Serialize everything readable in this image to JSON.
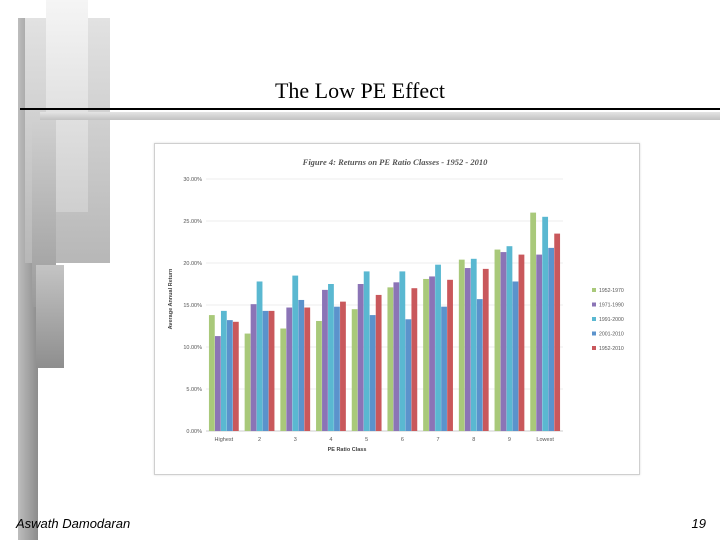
{
  "slide": {
    "title": "The Low PE Effect",
    "author": "Aswath Damodaran",
    "page_number": "19"
  },
  "chart_data": {
    "type": "bar",
    "title": "Figure 4: Returns on PE Ratio Classes - 1952 - 2010",
    "xlabel": "PE Ratio Class",
    "ylabel": "Average Annual Return",
    "ylim": [
      0,
      30
    ],
    "y_ticks": [
      "0.00%",
      "5.00%",
      "10.00%",
      "15.00%",
      "20.00%",
      "25.00%",
      "30.00%"
    ],
    "grid": true,
    "legend_position": "right",
    "categories": [
      "Highest",
      "2",
      "3",
      "4",
      "5",
      "6",
      "7",
      "8",
      "9",
      "Lowest"
    ],
    "series": [
      {
        "name": "1952-1970",
        "color": "#a9c97a",
        "values": [
          13.8,
          11.6,
          12.2,
          13.1,
          14.5,
          17.1,
          18.1,
          20.4,
          21.6,
          26.0
        ]
      },
      {
        "name": "1971-1990",
        "color": "#8b74b6",
        "values": [
          11.3,
          15.1,
          14.7,
          16.8,
          17.5,
          17.7,
          18.4,
          19.4,
          21.3,
          21.0
        ]
      },
      {
        "name": "1991-2000",
        "color": "#5ab8d1",
        "values": [
          14.3,
          17.8,
          18.5,
          17.5,
          19.0,
          19.0,
          19.8,
          20.5,
          22.0,
          25.5
        ]
      },
      {
        "name": "2001-2010",
        "color": "#5b93cc",
        "values": [
          13.2,
          14.3,
          15.6,
          14.8,
          13.8,
          13.3,
          14.8,
          15.7,
          17.8,
          21.8
        ]
      },
      {
        "name": "1952-2010",
        "color": "#c9585c",
        "values": [
          13.0,
          14.3,
          14.7,
          15.4,
          16.2,
          17.0,
          18.0,
          19.3,
          21.0,
          23.5
        ]
      }
    ]
  }
}
